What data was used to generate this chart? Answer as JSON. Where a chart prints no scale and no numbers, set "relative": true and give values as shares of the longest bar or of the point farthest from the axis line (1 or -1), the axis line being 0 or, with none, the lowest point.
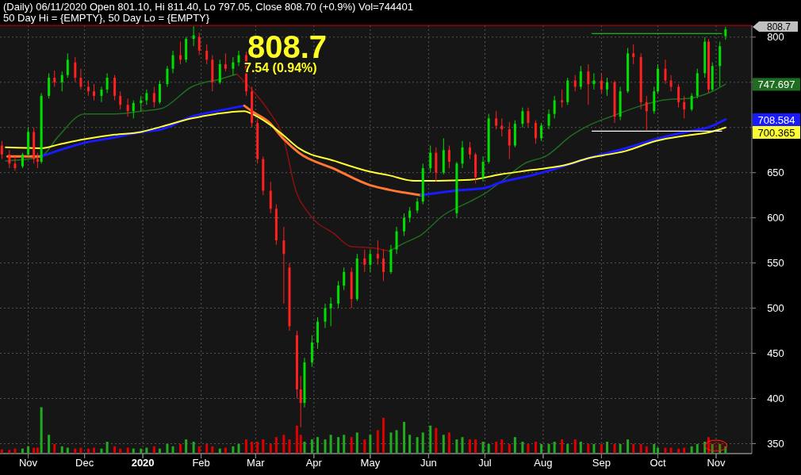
{
  "chart_data": [
    {
      "type": "candlestick",
      "title": "(Daily) 06/11/2020 Open 801.10, Hi 811.40, Lo 797.05, Close 808.70 (+0.9%) Vol=744401",
      "subtitle": "50 Day Hi = {EMPTY}, 50 Day Lo = {EMPTY}",
      "annotations": [
        "808.7",
        "7.54 (0.94%)",
        "808.7",
        "747.697",
        "708.584",
        "700.365"
      ],
      "tick_labels": "y",
      "xlim": [
        "2019-10-17",
        "2020-11-20"
      ],
      "xticks": [
        {
          "value": "2019-11-01",
          "label": null
        },
        {
          "value": "2019-12-01",
          "label": null
        },
        {
          "value": "2020-01-01",
          "label": null
        },
        {
          "value": "2020-02-01",
          "label": null
        },
        {
          "value": "2020-03-01",
          "label": null
        },
        {
          "value": "2020-04-01",
          "label": null
        },
        {
          "value": "2020-05-01",
          "label": null
        },
        {
          "value": "2020-06-01",
          "label": null
        },
        {
          "value": "2020-07-01",
          "label": null
        },
        {
          "value": "2020-08-01",
          "label": null
        },
        {
          "value": "2020-09-01",
          "label": null
        },
        {
          "value": "2020-10-01",
          "label": null
        },
        {
          "value": "2020-11-01",
          "label": null
        }
      ],
      "ylim": [
        339,
        813
      ],
      "yticks": [
        350,
        400,
        450,
        500,
        550,
        600,
        650,
        {
          "value": 700,
          "label": null
        },
        {
          "value": 750,
          "label": null
        },
        800
      ],
      "grid": true,
      "x": [
        "2019-10-18",
        "2019-10-22",
        "2019-10-25",
        "2019-10-29",
        "2019-11-01",
        "2019-11-04",
        "2019-11-06",
        "2019-11-08",
        "2019-11-12",
        "2019-11-15",
        "2019-11-19",
        "2019-11-22",
        "2019-11-26",
        "2019-11-29",
        "2019-12-03",
        "2019-12-06",
        "2019-12-10",
        "2019-12-13",
        "2019-12-17",
        "2019-12-20",
        "2019-12-24",
        "2019-12-27",
        "2019-12-31",
        "2020-01-03",
        "2020-01-07",
        "2020-01-10",
        "2020-01-14",
        "2020-01-17",
        "2020-01-21",
        "2020-01-24",
        "2020-01-28",
        "2020-01-31",
        "2020-02-04",
        "2020-02-07",
        "2020-02-11",
        "2020-02-14",
        "2020-02-18",
        "2020-02-21",
        "2020-02-25",
        "2020-02-28",
        "2020-03-02",
        "2020-03-05",
        "2020-03-09",
        "2020-03-12",
        "2020-03-16",
        "2020-03-19",
        "2020-03-23",
        "2020-03-25",
        "2020-03-27",
        "2020-03-31",
        "2020-04-03",
        "2020-04-07",
        "2020-04-10",
        "2020-04-14",
        "2020-04-17",
        "2020-04-21",
        "2020-04-24",
        "2020-04-28",
        "2020-05-01",
        "2020-05-05",
        "2020-05-08",
        "2020-05-12",
        "2020-05-15",
        "2020-05-19",
        "2020-05-22",
        "2020-05-26",
        "2020-05-29",
        "2020-06-02",
        "2020-06-05",
        "2020-06-09",
        "2020-06-12",
        "2020-06-16",
        "2020-06-19",
        "2020-06-23",
        "2020-06-26",
        "2020-06-30",
        "2020-07-03",
        "2020-07-07",
        "2020-07-10",
        "2020-07-14",
        "2020-07-17",
        "2020-07-21",
        "2020-07-24",
        "2020-07-28",
        "2020-07-31",
        "2020-08-04",
        "2020-08-07",
        "2020-08-11",
        "2020-08-14",
        "2020-08-18",
        "2020-08-21",
        "2020-08-25",
        "2020-08-28",
        "2020-09-01",
        "2020-09-04",
        "2020-09-08",
        "2020-09-11",
        "2020-09-15",
        "2020-09-18",
        "2020-09-22",
        "2020-09-25",
        "2020-09-29",
        "2020-10-01",
        "2020-10-05",
        "2020-10-08",
        "2020-10-12",
        "2020-10-15",
        "2020-10-19",
        "2020-10-22",
        "2020-10-26",
        "2020-10-28",
        "2020-10-30",
        "2020-11-03",
        "2020-11-06"
      ],
      "ohlc": [
        [
          680,
          685,
          665,
          670
        ],
        [
          670,
          675,
          655,
          660
        ],
        [
          660,
          668,
          652,
          655
        ],
        [
          657,
          672,
          655,
          670
        ],
        [
          670,
          700,
          668,
          695
        ],
        [
          695,
          700,
          660,
          665
        ],
        [
          665,
          672,
          655,
          662
        ],
        [
          662,
          738,
          660,
          735
        ],
        [
          735,
          760,
          732,
          755
        ],
        [
          755,
          763,
          745,
          750
        ],
        [
          750,
          762,
          740,
          758
        ],
        [
          758,
          782,
          755,
          775
        ],
        [
          772,
          778,
          750,
          755
        ],
        [
          755,
          765,
          742,
          745
        ],
        [
          745,
          752,
          735,
          740
        ],
        [
          740,
          748,
          730,
          735
        ],
        [
          735,
          745,
          728,
          742
        ],
        [
          742,
          760,
          738,
          755
        ],
        [
          755,
          758,
          730,
          735
        ],
        [
          735,
          740,
          720,
          725
        ],
        [
          725,
          732,
          712,
          718
        ],
        [
          718,
          730,
          710,
          727
        ],
        [
          727,
          735,
          718,
          730
        ],
        [
          730,
          742,
          725,
          738
        ],
        [
          738,
          745,
          722,
          728
        ],
        [
          728,
          752,
          726,
          748
        ],
        [
          748,
          768,
          745,
          765
        ],
        [
          765,
          785,
          760,
          780
        ],
        [
          780,
          795,
          770,
          775
        ],
        [
          775,
          800,
          772,
          798
        ],
        [
          798,
          812,
          790,
          802
        ],
        [
          800,
          805,
          780,
          785
        ],
        [
          785,
          792,
          770,
          775
        ],
        [
          775,
          780,
          740,
          750
        ],
        [
          750,
          775,
          748,
          770
        ],
        [
          770,
          782,
          762,
          765
        ],
        [
          765,
          778,
          758,
          772
        ],
        [
          772,
          785,
          768,
          780
        ],
        [
          780,
          784,
          735,
          740
        ],
        [
          740,
          745,
          700,
          705
        ],
        [
          705,
          710,
          660,
          665
        ],
        [
          665,
          668,
          625,
          630
        ],
        [
          630,
          640,
          605,
          610
        ],
        [
          610,
          615,
          570,
          575
        ],
        [
          575,
          590,
          505,
          560
        ],
        [
          545,
          550,
          475,
          480
        ],
        [
          470,
          475,
          400,
          410
        ],
        [
          410,
          425,
          368,
          395
        ],
        [
          395,
          445,
          390,
          440
        ],
        [
          440,
          470,
          435,
          462
        ],
        [
          462,
          490,
          455,
          485
        ],
        [
          485,
          505,
          478,
          500
        ],
        [
          500,
          512,
          480,
          505
        ],
        [
          505,
          530,
          500,
          525
        ],
        [
          525,
          545,
          520,
          540
        ],
        [
          540,
          545,
          500,
          510
        ],
        [
          510,
          560,
          508,
          555
        ],
        [
          555,
          565,
          540,
          548
        ],
        [
          548,
          565,
          540,
          560
        ],
        [
          560,
          575,
          548,
          555
        ],
        [
          555,
          565,
          530,
          540
        ],
        [
          540,
          570,
          538,
          565
        ],
        [
          565,
          590,
          560,
          585
        ],
        [
          585,
          605,
          580,
          600
        ],
        [
          600,
          612,
          595,
          608
        ],
        [
          608,
          622,
          605,
          618
        ],
        [
          618,
          660,
          615,
          655
        ],
        [
          655,
          680,
          650,
          672
        ],
        [
          672,
          678,
          640,
          650
        ],
        [
          650,
          688,
          648,
          675
        ],
        [
          675,
          680,
          655,
          662
        ],
        [
          605,
          662,
          600,
          660
        ],
        [
          660,
          685,
          655,
          678
        ],
        [
          678,
          684,
          665,
          670
        ],
        [
          670,
          672,
          638,
          645
        ],
        [
          645,
          668,
          640,
          662
        ],
        [
          662,
          715,
          660,
          710
        ],
        [
          710,
          718,
          698,
          702
        ],
        [
          702,
          710,
          690,
          698
        ],
        [
          698,
          706,
          665,
          680
        ],
        [
          680,
          708,
          678,
          704
        ],
        [
          704,
          722,
          700,
          718
        ],
        [
          718,
          722,
          700,
          705
        ],
        [
          705,
          708,
          682,
          688
        ],
        [
          688,
          705,
          685,
          702
        ],
        [
          702,
          720,
          698,
          715
        ],
        [
          715,
          735,
          710,
          730
        ],
        [
          730,
          742,
          722,
          728
        ],
        [
          728,
          755,
          725,
          752
        ],
        [
          752,
          758,
          740,
          745
        ],
        [
          745,
          768,
          742,
          762
        ],
        [
          762,
          770,
          725,
          748
        ],
        [
          748,
          760,
          742,
          752
        ],
        [
          752,
          760,
          738,
          742
        ],
        [
          742,
          755,
          735,
          750
        ],
        [
          750,
          752,
          705,
          712
        ],
        [
          712,
          745,
          708,
          740
        ],
        [
          740,
          788,
          738,
          782
        ],
        [
          782,
          792,
          770,
          778
        ],
        [
          778,
          782,
          720,
          728
        ],
        [
          728,
          735,
          697,
          718
        ],
        [
          718,
          745,
          715,
          740
        ],
        [
          740,
          770,
          738,
          765
        ],
        [
          765,
          775,
          748,
          752
        ],
        [
          752,
          758,
          740,
          745
        ],
        [
          745,
          748,
          722,
          728
        ],
        [
          728,
          735,
          710,
          720
        ],
        [
          720,
          738,
          718,
          735
        ],
        [
          735,
          765,
          732,
          760
        ],
        [
          760,
          800,
          755,
          795
        ],
        [
          795,
          798,
          738,
          742
        ],
        [
          742,
          772,
          740,
          768
        ],
        [
          768,
          795,
          745,
          790
        ],
        [
          801.1,
          811.4,
          797.05,
          808.7
        ]
      ],
      "series": [
        {
          "type": "line",
          "color": "#1f6e1f",
          "x": [
            "2019-10-20",
            "2019-11-01",
            "2019-11-08",
            "2019-11-17",
            "2019-12-01",
            "2019-12-17",
            "2019-12-31",
            "2020-01-11",
            "2020-01-27",
            "2020-02-12",
            "2020-02-20"
          ],
          "values": [
            663,
            665,
            668,
            690,
            715,
            715,
            718,
            721,
            745,
            754,
            759
          ]
        },
        {
          "type": "line",
          "color": "#8b1010",
          "x": [
            "2020-02-20",
            "2020-02-28",
            "2020-03-08",
            "2020-03-16",
            "2020-03-22",
            "2020-03-30",
            "2020-04-12",
            "2020-04-21",
            "2020-05-01",
            "2020-05-11"
          ],
          "values": [
            759,
            742,
            718,
            687,
            633,
            603,
            582,
            568,
            567,
            563
          ]
        },
        {
          "type": "line",
          "color": "#1f6e1f",
          "x": [
            "2020-05-11",
            "2020-05-19",
            "2020-05-28",
            "2020-06-09",
            "2020-06-23",
            "2020-07-01",
            "2020-07-09",
            "2020-07-22",
            "2020-08-03",
            "2020-08-16",
            "2020-08-25",
            "2020-09-06",
            "2020-09-22",
            "2020-10-03",
            "2020-10-20",
            "2020-10-29",
            "2020-11-06"
          ],
          "values": [
            563,
            572,
            581,
            603,
            618,
            627,
            639,
            660,
            669,
            691,
            702,
            712,
            724,
            730,
            733,
            739,
            748
          ]
        },
        {
          "type": "line",
          "color": "#ff7733",
          "x": [
            "2019-10-21",
            "2019-11-08"
          ],
          "values": [
            668,
            668
          ]
        },
        {
          "type": "line",
          "color": "#1a1aff",
          "x": [
            "2019-11-08",
            "2019-12-01",
            "2019-12-17",
            "2019-12-31",
            "2020-01-11",
            "2020-01-27",
            "2020-02-09",
            "2020-02-24"
          ],
          "values": [
            668,
            683,
            689,
            695,
            698,
            712,
            718,
            724
          ]
        },
        {
          "type": "line",
          "color": "#ff7733",
          "x": [
            "2020-02-24",
            "2020-02-28",
            "2020-03-08",
            "2020-03-16",
            "2020-03-24",
            "2020-04-12",
            "2020-05-01",
            "2020-05-11",
            "2020-05-28"
          ],
          "values": [
            724,
            718,
            706,
            687,
            672,
            654,
            636,
            631,
            625
          ]
        },
        {
          "type": "line",
          "color": "#1a1aff",
          "x": [
            "2020-05-28",
            "2020-06-15",
            "2020-07-01",
            "2020-07-09",
            "2020-07-26",
            "2020-08-07",
            "2020-08-25",
            "2020-09-14",
            "2020-09-30",
            "2020-10-16",
            "2020-10-29",
            "2020-11-06"
          ],
          "values": [
            625,
            630,
            633,
            639,
            647,
            654,
            666,
            677,
            687,
            695,
            701,
            709
          ]
        },
        {
          "type": "line",
          "color": "#ffff33",
          "x": [
            "2019-10-20",
            "2019-11-08",
            "2019-11-17",
            "2019-12-01",
            "2019-12-17",
            "2019-12-31",
            "2020-01-11",
            "2020-01-27",
            "2020-02-09",
            "2020-02-24",
            "2020-02-28",
            "2020-03-08",
            "2020-03-16",
            "2020-03-24",
            "2020-04-12",
            "2020-05-01",
            "2020-05-11",
            "2020-05-24",
            "2020-06-06",
            "2020-06-23",
            "2020-07-09",
            "2020-07-26",
            "2020-08-12",
            "2020-08-25",
            "2020-09-14",
            "2020-09-30",
            "2020-10-16",
            "2020-10-29",
            "2020-11-06"
          ],
          "values": [
            678,
            677,
            681,
            687,
            692,
            695,
            701,
            710,
            715,
            718,
            715,
            704,
            691,
            677,
            663,
            651,
            647,
            641,
            641,
            642,
            648,
            653,
            658,
            666,
            674,
            685,
            691,
            695,
            700
          ]
        },
        {
          "type": "line",
          "color": "#22dd22",
          "x": [
            "2020-08-27",
            "2020-11-04"
          ],
          "values": [
            804,
            804
          ]
        },
        {
          "type": "line",
          "color": "#ffffff",
          "x": [
            "2020-08-27",
            "2020-11-04"
          ],
          "values": [
            696,
            696
          ]
        }
      ]
    },
    {
      "type": "bar",
      "relative": true,
      "tick_labels": "x",
      "xlim": [
        "2019-10-17",
        "2020-11-20"
      ],
      "xticks": [
        {
          "value": "2019-11-01",
          "label": "Nov"
        },
        {
          "value": "2019-12-01",
          "label": "Dec"
        },
        {
          "value": "2020-01-01",
          "label": "2020"
        },
        {
          "value": "2020-02-01",
          "label": "Feb"
        },
        {
          "value": "2020-03-01",
          "label": "Mar"
        },
        {
          "value": "2020-04-01",
          "label": "Apr"
        },
        {
          "value": "2020-05-01",
          "label": "May"
        },
        {
          "value": "2020-06-01",
          "label": "Jun"
        },
        {
          "value": "2020-07-01",
          "label": "Jul"
        },
        {
          "value": "2020-08-01",
          "label": "Aug"
        },
        {
          "value": "2020-09-01",
          "label": "Sep"
        },
        {
          "value": "2020-10-01",
          "label": "Oct"
        },
        {
          "value": "2020-11-01",
          "label": "Nov"
        }
      ],
      "x": [
        "2019-10-18",
        "2019-10-22",
        "2019-10-25",
        "2019-10-29",
        "2019-11-01",
        "2019-11-04",
        "2019-11-06",
        "2019-11-08",
        "2019-11-12",
        "2019-11-15",
        "2019-11-19",
        "2019-11-22",
        "2019-11-26",
        "2019-11-29",
        "2019-12-03",
        "2019-12-06",
        "2019-12-10",
        "2019-12-13",
        "2019-12-17",
        "2019-12-20",
        "2019-12-24",
        "2019-12-27",
        "2019-12-31",
        "2020-01-03",
        "2020-01-07",
        "2020-01-10",
        "2020-01-14",
        "2020-01-17",
        "2020-01-21",
        "2020-01-24",
        "2020-01-28",
        "2020-01-31",
        "2020-02-04",
        "2020-02-07",
        "2020-02-11",
        "2020-02-14",
        "2020-02-18",
        "2020-02-21",
        "2020-02-25",
        "2020-02-28",
        "2020-03-02",
        "2020-03-05",
        "2020-03-09",
        "2020-03-12",
        "2020-03-16",
        "2020-03-19",
        "2020-03-23",
        "2020-03-25",
        "2020-03-27",
        "2020-03-31",
        "2020-04-03",
        "2020-04-07",
        "2020-04-10",
        "2020-04-14",
        "2020-04-17",
        "2020-04-21",
        "2020-04-24",
        "2020-04-28",
        "2020-05-01",
        "2020-05-05",
        "2020-05-08",
        "2020-05-12",
        "2020-05-15",
        "2020-05-19",
        "2020-05-22",
        "2020-05-26",
        "2020-05-29",
        "2020-06-02",
        "2020-06-05",
        "2020-06-09",
        "2020-06-12",
        "2020-06-16",
        "2020-06-19",
        "2020-06-23",
        "2020-06-26",
        "2020-06-30",
        "2020-07-03",
        "2020-07-07",
        "2020-07-10",
        "2020-07-14",
        "2020-07-17",
        "2020-07-21",
        "2020-07-24",
        "2020-07-28",
        "2020-07-31",
        "2020-08-04",
        "2020-08-07",
        "2020-08-11",
        "2020-08-14",
        "2020-08-18",
        "2020-08-21",
        "2020-08-25",
        "2020-08-28",
        "2020-09-01",
        "2020-09-04",
        "2020-09-08",
        "2020-09-11",
        "2020-09-15",
        "2020-09-18",
        "2020-09-22",
        "2020-09-25",
        "2020-09-29",
        "2020-10-01",
        "2020-10-05",
        "2020-10-08",
        "2020-10-12",
        "2020-10-15",
        "2020-10-19",
        "2020-10-22",
        "2020-10-26",
        "2020-10-28",
        "2020-10-30",
        "2020-11-03",
        "2020-11-06"
      ],
      "values": [
        0.08,
        0.07,
        0.1,
        0.1,
        0.15,
        0.12,
        0.12,
        1.0,
        0.4,
        0.2,
        0.15,
        0.12,
        0.1,
        0.12,
        0.1,
        0.12,
        0.1,
        0.25,
        0.15,
        0.1,
        0.12,
        0.1,
        0.1,
        0.12,
        0.15,
        0.1,
        0.2,
        0.15,
        0.2,
        0.3,
        0.25,
        0.15,
        0.2,
        0.15,
        0.1,
        0.12,
        0.15,
        0.2,
        0.3,
        0.25,
        0.25,
        0.3,
        0.2,
        0.35,
        0.4,
        0.3,
        0.6,
        0.4,
        0.25,
        0.3,
        0.35,
        0.3,
        0.4,
        0.35,
        0.4,
        0.35,
        0.45,
        0.3,
        0.4,
        0.5,
        0.77,
        0.45,
        0.5,
        0.68,
        0.4,
        0.35,
        0.45,
        0.6,
        0.55,
        0.4,
        0.45,
        0.3,
        0.35,
        0.3,
        0.3,
        0.25,
        0.2,
        0.25,
        0.3,
        0.2,
        0.35,
        0.25,
        0.2,
        0.25,
        0.2,
        0.2,
        0.25,
        0.3,
        0.2,
        0.3,
        0.25,
        0.2,
        0.2,
        0.2,
        0.25,
        0.2,
        0.2,
        0.3,
        0.2,
        0.2,
        0.15,
        0.2,
        0.12,
        0.12,
        0.12,
        0.1,
        0.12,
        0.15,
        0.2,
        0.25,
        0.35,
        0.2,
        0.2,
        0.15
      ],
      "colors": [
        "#dd0000",
        "#dd0000",
        "#dd0000",
        "#22aa22",
        "#22aa22",
        "#dd0000",
        "#dd0000",
        "#22aa22",
        "#22aa22",
        "#dd0000",
        "#22aa22",
        "#22aa22",
        "#dd0000",
        "#dd0000",
        "#dd0000",
        "#dd0000",
        "#22aa22",
        "#22aa22",
        "#dd0000",
        "#dd0000",
        "#dd0000",
        "#22aa22",
        "#22aa22",
        "#22aa22",
        "#dd0000",
        "#22aa22",
        "#22aa22",
        "#22aa22",
        "#dd0000",
        "#22aa22",
        "#22aa22",
        "#dd0000",
        "#dd0000",
        "#dd0000",
        "#22aa22",
        "#dd0000",
        "#22aa22",
        "#22aa22",
        "#dd0000",
        "#dd0000",
        "#dd0000",
        "#dd0000",
        "#dd0000",
        "#dd0000",
        "#dd0000",
        "#dd0000",
        "#dd0000",
        "#dd0000",
        "#22aa22",
        "#22aa22",
        "#22aa22",
        "#22aa22",
        "#22aa22",
        "#22aa22",
        "#22aa22",
        "#dd0000",
        "#22aa22",
        "#dd0000",
        "#22aa22",
        "#dd0000",
        "#dd0000",
        "#22aa22",
        "#22aa22",
        "#22aa22",
        "#22aa22",
        "#22aa22",
        "#22aa22",
        "#22aa22",
        "#dd0000",
        "#22aa22",
        "#dd0000",
        "#22aa22",
        "#22aa22",
        "#dd0000",
        "#dd0000",
        "#22aa22",
        "#22aa22",
        "#dd0000",
        "#dd0000",
        "#dd0000",
        "#22aa22",
        "#22aa22",
        "#dd0000",
        "#dd0000",
        "#22aa22",
        "#22aa22",
        "#22aa22",
        "#dd0000",
        "#22aa22",
        "#dd0000",
        "#22aa22",
        "#dd0000",
        "#22aa22",
        "#dd0000",
        "#22aa22",
        "#dd0000",
        "#22aa22",
        "#22aa22",
        "#dd0000",
        "#dd0000",
        "#dd0000",
        "#22aa22",
        "#22aa22",
        "#dd0000",
        "#dd0000",
        "#dd0000",
        "#dd0000",
        "#22aa22",
        "#22aa22",
        "#22aa22",
        "#dd0000",
        "#22aa22",
        "#22aa22",
        "#22aa22"
      ]
    }
  ]
}
